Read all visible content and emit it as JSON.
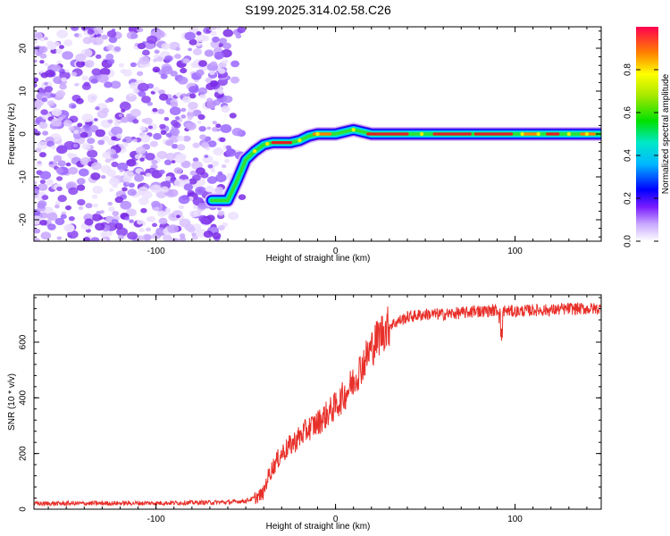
{
  "title": "S199.2025.314.02.58.C26",
  "chart_data": [
    {
      "type": "heatmap",
      "xlabel": "Height of straight line (km)",
      "ylabel": "Frequency (Hz)",
      "xlim": [
        -168,
        148
      ],
      "ylim": [
        -25,
        25
      ],
      "xticks": [
        -100,
        0,
        100
      ],
      "yticks": [
        -20,
        -10,
        0,
        10,
        20
      ],
      "ridge": {
        "x": [
          -69,
          -60,
          -55,
          -50,
          -45,
          -40,
          -35,
          -30,
          -25,
          -20,
          -15,
          -10,
          -5,
          0,
          5,
          10,
          15,
          20,
          40,
          60,
          80,
          100,
          120,
          148
        ],
        "y": [
          -15.5,
          -15.5,
          -11,
          -6,
          -4,
          -2.5,
          -2,
          -2,
          -2,
          -1.5,
          -0.5,
          0,
          0,
          0,
          0.5,
          1,
          0.5,
          0,
          0,
          0,
          0,
          0,
          0,
          0
        ]
      },
      "noise_region_x": [
        -168,
        -60
      ],
      "colorbar": {
        "label": "Normalized spectral amplitude",
        "ticks": [
          "0.0",
          "0.2",
          "0.4",
          "0.6",
          "0.8"
        ],
        "range": [
          0,
          1
        ]
      }
    },
    {
      "type": "line",
      "xlabel": "Height of straight line (km)",
      "ylabel": "SNR (10 * v/v)",
      "xlim": [
        -168,
        148
      ],
      "ylim": [
        0,
        770
      ],
      "xticks": [
        -100,
        0,
        100
      ],
      "yticks": [
        0,
        200,
        400,
        600
      ],
      "series": [
        {
          "name": "SNR",
          "color": "#e8302a",
          "x": [
            -168,
            -100,
            -60,
            -50,
            -45,
            -42,
            -40,
            -38,
            -35,
            -32,
            -30,
            -25,
            -20,
            -15,
            -10,
            -5,
            0,
            5,
            10,
            15,
            20,
            25,
            30,
            40,
            50,
            60,
            70,
            80,
            90,
            100,
            110,
            120,
            130,
            140,
            148
          ],
          "y": [
            20,
            22,
            25,
            30,
            40,
            50,
            60,
            110,
            150,
            180,
            200,
            230,
            260,
            290,
            310,
            340,
            370,
            410,
            460,
            520,
            580,
            630,
            660,
            690,
            700,
            700,
            705,
            710,
            715,
            710,
            715,
            715,
            720,
            720,
            720
          ]
        }
      ]
    }
  ]
}
